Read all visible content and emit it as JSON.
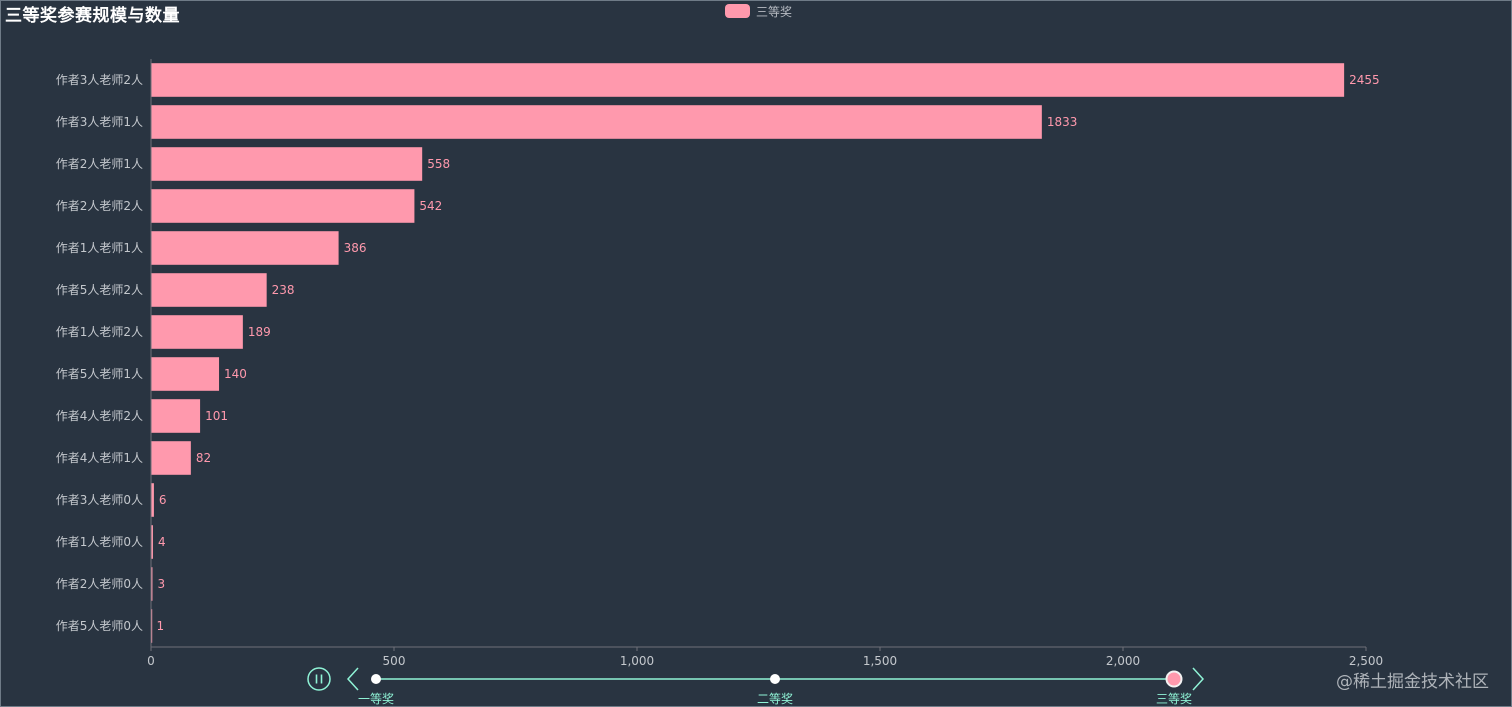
{
  "chart_data": {
    "type": "bar",
    "orientation": "horizontal",
    "title": "三等奖参赛规模与数量",
    "legend": [
      "三等奖"
    ],
    "legend_position": "top-center",
    "series": [
      {
        "name": "三等奖",
        "color": "#ff99ad",
        "categories": [
          "作者3人老师2人",
          "作者3人老师1人",
          "作者2人老师1人",
          "作者2人老师2人",
          "作者1人老师1人",
          "作者5人老师2人",
          "作者1人老师2人",
          "作者5人老师1人",
          "作者4人老师2人",
          "作者4人老师1人",
          "作者3人老师0人",
          "作者1人老师0人",
          "作者2人老师0人",
          "作者5人老师0人"
        ],
        "values": [
          2455,
          1833,
          558,
          542,
          386,
          238,
          189,
          140,
          101,
          82,
          6,
          4,
          3,
          1
        ]
      }
    ],
    "x_axis": {
      "range": [
        0,
        2500
      ],
      "ticks": [
        0,
        500,
        1000,
        1500,
        2000,
        2500
      ],
      "tick_labels": [
        "0",
        "500",
        "1,000",
        "1,500",
        "2,000",
        "2,500"
      ]
    },
    "grid": false,
    "timeline": {
      "items": [
        "一等奖",
        "二等奖",
        "三等奖"
      ],
      "current": 2,
      "playing": true
    }
  },
  "watermark": "@稀土掘金技术社区",
  "colors": {
    "background": "#293441",
    "bar": "#ff99ad",
    "timeline": "#8ff3d6",
    "axis_text": "#c4c8cd"
  }
}
